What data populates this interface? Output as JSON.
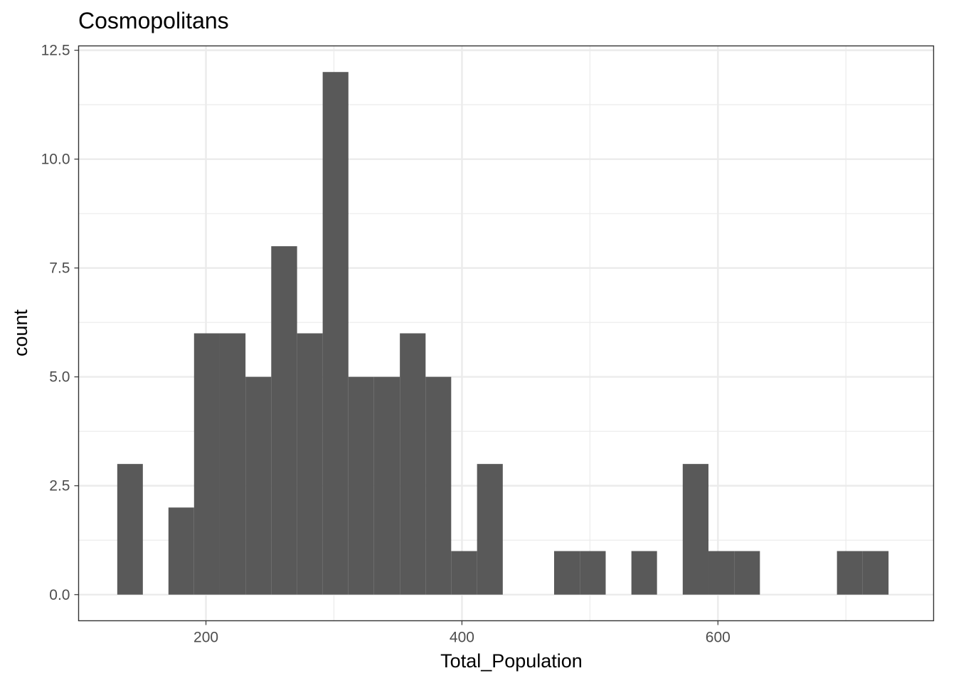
{
  "chart_data": {
    "type": "bar",
    "title": "Cosmopolitans",
    "xlabel": "Total_Population",
    "ylabel": "count",
    "xlim": [
      100.5,
      768.5
    ],
    "ylim": [
      -0.6,
      12.6
    ],
    "x_ticks": [
      200,
      400,
      600
    ],
    "x_tick_labels": [
      "200",
      "400",
      "600"
    ],
    "y_ticks": [
      0,
      2.5,
      5,
      7.5,
      10,
      12.5
    ],
    "y_tick_labels": [
      "0.0",
      "2.5",
      "5.0",
      "7.5",
      "10.0",
      "12.5"
    ],
    "x_minor_ticks": [
      100,
      300,
      500,
      700
    ],
    "y_minor_ticks": [
      1.25,
      3.75,
      6.25,
      8.75,
      11.25
    ],
    "grid": true,
    "bar_color": "#595959",
    "bins": [
      {
        "x0": 130.7,
        "x1": 150.7,
        "count": 3
      },
      {
        "x0": 150.7,
        "x1": 170.7,
        "count": 0
      },
      {
        "x0": 170.7,
        "x1": 190.7,
        "count": 2
      },
      {
        "x0": 190.7,
        "x1": 210.8,
        "count": 6
      },
      {
        "x0": 210.8,
        "x1": 230.9,
        "count": 6
      },
      {
        "x0": 230.9,
        "x1": 251.0,
        "count": 5
      },
      {
        "x0": 251.0,
        "x1": 271.2,
        "count": 8
      },
      {
        "x0": 271.2,
        "x1": 291.2,
        "count": 6
      },
      {
        "x0": 291.2,
        "x1": 311.3,
        "count": 12
      },
      {
        "x0": 311.3,
        "x1": 331.3,
        "count": 5
      },
      {
        "x0": 331.3,
        "x1": 351.5,
        "count": 5
      },
      {
        "x0": 351.5,
        "x1": 371.6,
        "count": 6
      },
      {
        "x0": 371.6,
        "x1": 391.6,
        "count": 5
      },
      {
        "x0": 391.6,
        "x1": 411.8,
        "count": 1
      },
      {
        "x0": 411.8,
        "x1": 431.9,
        "count": 3
      },
      {
        "x0": 431.9,
        "x1": 452.0,
        "count": 0
      },
      {
        "x0": 452.0,
        "x1": 472.0,
        "count": 0
      },
      {
        "x0": 472.0,
        "x1": 492.1,
        "count": 1
      },
      {
        "x0": 492.1,
        "x1": 512.3,
        "count": 1
      },
      {
        "x0": 512.3,
        "x1": 532.4,
        "count": 0
      },
      {
        "x0": 532.4,
        "x1": 552.4,
        "count": 1
      },
      {
        "x0": 552.4,
        "x1": 572.5,
        "count": 0
      },
      {
        "x0": 572.5,
        "x1": 592.6,
        "count": 3
      },
      {
        "x0": 592.6,
        "x1": 612.8,
        "count": 1
      },
      {
        "x0": 612.8,
        "x1": 632.8,
        "count": 1
      },
      {
        "x0": 632.8,
        "x1": 652.9,
        "count": 0
      },
      {
        "x0": 652.9,
        "x1": 672.9,
        "count": 0
      },
      {
        "x0": 672.9,
        "x1": 693.0,
        "count": 0
      },
      {
        "x0": 693.0,
        "x1": 713.1,
        "count": 1
      },
      {
        "x0": 713.1,
        "x1": 733.3,
        "count": 1
      }
    ]
  }
}
